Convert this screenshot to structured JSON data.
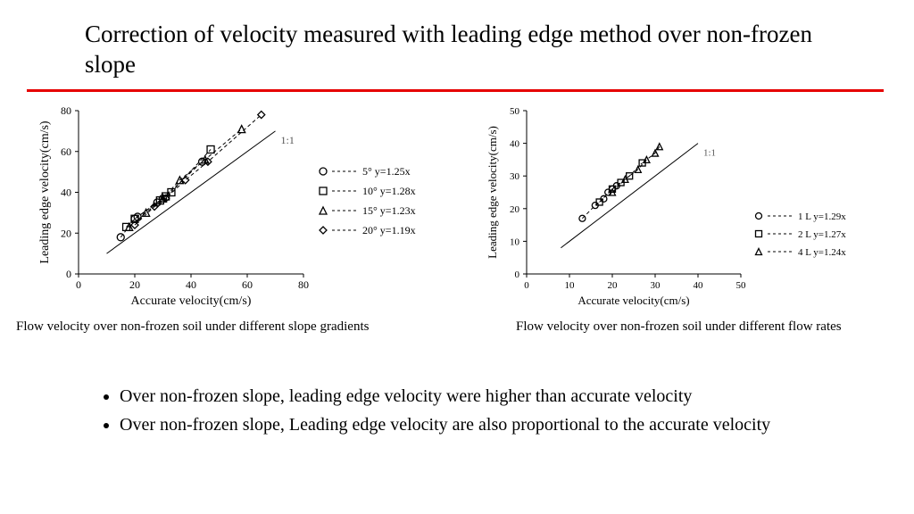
{
  "title": "Correction of velocity measured with leading edge method over non-frozen slope",
  "rule_color": "#e60000",
  "chart_left": {
    "type": "scatter",
    "xlabel": "Accurate velocity(cm/s)",
    "ylabel": "Leading edge velocity(cm/s)",
    "xlim": [
      0,
      80
    ],
    "xtick_step": 20,
    "ylim": [
      0,
      80
    ],
    "ytick_step": 20,
    "label_fontsize": 14,
    "tick_fontsize": 12,
    "ref_line": {
      "label": "1:1",
      "x0": 10,
      "y0": 10,
      "x1": 70,
      "y1": 70,
      "color": "#000000",
      "width": 1
    },
    "series": [
      {
        "marker": "circle",
        "label": "5°  y=1.25x",
        "dash": true,
        "points": [
          [
            15,
            18
          ],
          [
            20,
            27
          ],
          [
            21,
            28
          ],
          [
            28,
            35
          ],
          [
            30,
            37
          ],
          [
            44,
            55
          ]
        ]
      },
      {
        "marker": "square",
        "label": "10°  y=1.28x",
        "dash": true,
        "points": [
          [
            17,
            23
          ],
          [
            20,
            27
          ],
          [
            29,
            36
          ],
          [
            31,
            38
          ],
          [
            33,
            40
          ],
          [
            47,
            61
          ]
        ]
      },
      {
        "marker": "triangle",
        "label": "15°  y=1.23x",
        "dash": true,
        "points": [
          [
            18,
            23
          ],
          [
            24,
            30
          ],
          [
            30,
            37
          ],
          [
            36,
            46
          ],
          [
            45,
            56
          ],
          [
            58,
            71
          ]
        ]
      },
      {
        "marker": "diamond",
        "label": "20°  y=1.19x",
        "dash": true,
        "points": [
          [
            20,
            24
          ],
          [
            27,
            33
          ],
          [
            31,
            37
          ],
          [
            38,
            46
          ],
          [
            46,
            55
          ],
          [
            65,
            78
          ]
        ]
      }
    ],
    "marker_size": 8,
    "stroke_color": "#000000",
    "axis_color": "#000000",
    "legend_fontsize": 12
  },
  "chart_right": {
    "type": "scatter",
    "xlabel": "Accurate velocity(cm/s)",
    "ylabel": "Leading edge velocity(cm/s)",
    "xlim": [
      0,
      50
    ],
    "xtick_step": 10,
    "ylim": [
      0,
      50
    ],
    "ytick_step": 10,
    "label_fontsize": 13,
    "tick_fontsize": 11,
    "ref_line": {
      "label": "1:1",
      "x0": 8,
      "y0": 8,
      "x1": 40,
      "y1": 40,
      "color": "#000000",
      "width": 1
    },
    "series": [
      {
        "marker": "circle",
        "label": "1 L  y=1.29x",
        "dash": true,
        "points": [
          [
            13,
            17
          ],
          [
            16,
            21
          ],
          [
            18,
            23
          ],
          [
            19,
            25
          ],
          [
            20,
            26
          ],
          [
            21,
            27
          ]
        ]
      },
      {
        "marker": "square",
        "label": "2 L  y=1.27x",
        "dash": true,
        "points": [
          [
            17,
            22
          ],
          [
            20,
            26
          ],
          [
            22,
            28
          ],
          [
            24,
            30
          ],
          [
            27,
            34
          ]
        ]
      },
      {
        "marker": "triangle",
        "label": "4 L  y=1.24x",
        "dash": true,
        "points": [
          [
            20,
            25
          ],
          [
            23,
            29
          ],
          [
            26,
            32
          ],
          [
            28,
            35
          ],
          [
            30,
            37
          ],
          [
            31,
            39
          ]
        ]
      }
    ],
    "marker_size": 7,
    "stroke_color": "#000000",
    "axis_color": "#000000",
    "legend_fontsize": 11
  },
  "caption_left": "Flow velocity over non-frozen soil under different slope gradients",
  "caption_right": "Flow velocity over non-frozen soil under different flow rates",
  "bullets": [
    "Over non-frozen slope, leading edge velocity were higher than accurate velocity",
    "Over non-frozen slope, Leading edge velocity are also proportional to the accurate velocity"
  ]
}
